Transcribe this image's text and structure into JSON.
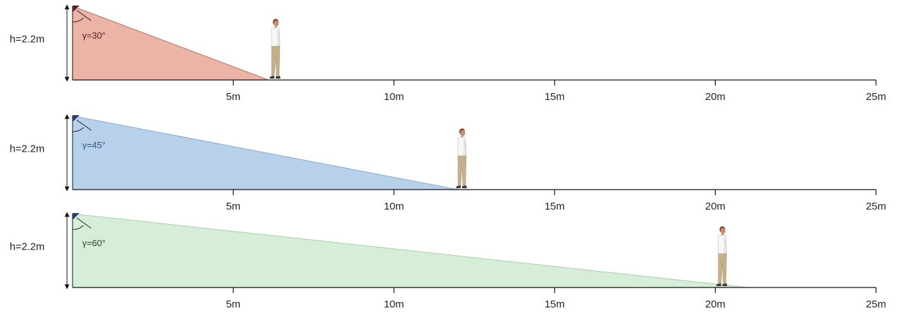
{
  "panels": [
    {
      "height_label": "h=2.2m",
      "angle_label": "γ=30°",
      "fill_color": "#ebb4a7",
      "edge_color": "#b87468",
      "marker_color": "#5a2028",
      "label_color": "#5a2028",
      "coverage_end_m": 6.1,
      "person_at_m": 6.3
    },
    {
      "height_label": "h=2.2m",
      "angle_label": "γ=45°",
      "fill_color": "#b8d1ea",
      "edge_color": "#86a9cc",
      "marker_color": "#1f3f7a",
      "label_color": "#34507a",
      "coverage_end_m": 12.0,
      "person_at_m": 12.1
    },
    {
      "height_label": "h=2.2m",
      "angle_label": "γ=60°",
      "fill_color": "#d6eed7",
      "edge_color": "#a8d0aa",
      "marker_color": "#1f3f7a",
      "label_color": "#2e3e2e",
      "coverage_end_m": 21.0,
      "person_at_m": 20.2
    }
  ],
  "axis": {
    "max_m": 25,
    "ticks": [
      {
        "value": 5,
        "label": "5m"
      },
      {
        "value": 10,
        "label": "10m"
      },
      {
        "value": 15,
        "label": "15m"
      },
      {
        "value": 20,
        "label": "20m"
      },
      {
        "value": 25,
        "label": "25m"
      }
    ]
  },
  "colors": {
    "axis": "#111111",
    "skin": "#c98e6e",
    "hair": "#7a4a2e",
    "shirt": "#f7f7f7",
    "trousers": "#c4b08a",
    "shoes": "#3a3a3a"
  },
  "icons": [
    "person-icon",
    "angle-arc-icon",
    "height-arrow-icon",
    "camera-marker-icon"
  ]
}
